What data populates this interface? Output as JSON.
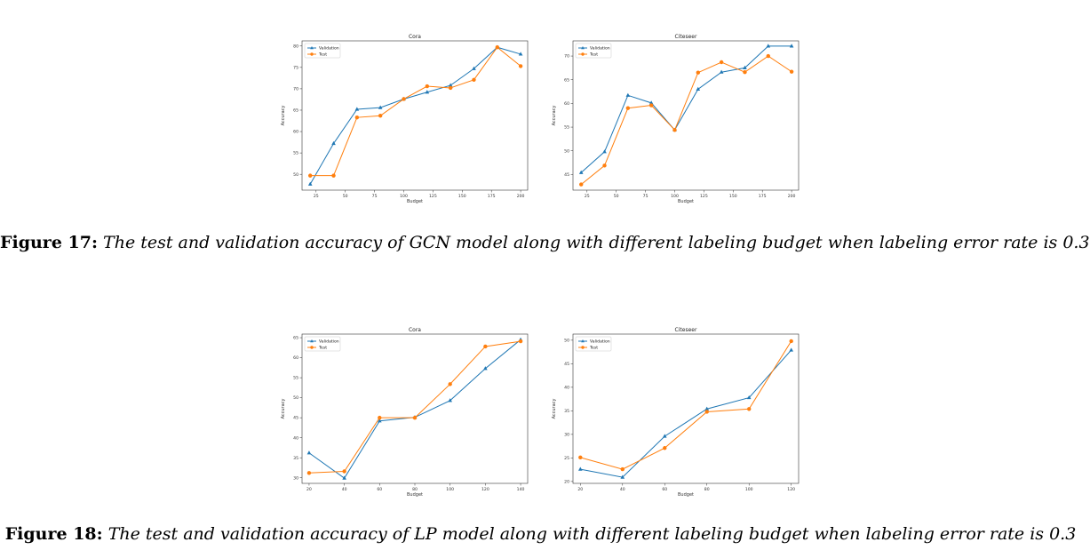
{
  "figures": [
    {
      "label": "Figure 17:",
      "text": "The test and validation accuracy of GCN model along with different labeling budget when labeling error rate is 0.3"
    },
    {
      "label": "Figure 18:",
      "text": "The test and validation accuracy of LP model along with different labeling budget when labeling error rate is 0.3"
    }
  ],
  "colors": {
    "validation": "#1f77b4",
    "test": "#ff7f0e"
  },
  "chart_data": [
    {
      "type": "line",
      "title": "Cora",
      "xlabel": "Budget",
      "ylabel": "Accuracy",
      "x": [
        20,
        40,
        60,
        80,
        100,
        120,
        140,
        160,
        180,
        200
      ],
      "xlim": [
        13,
        206
      ],
      "ylim": [
        46.3,
        81.2
      ],
      "xticks": [
        25,
        50,
        75,
        100,
        125,
        150,
        175,
        200
      ],
      "yticks": [
        50,
        55,
        60,
        65,
        70,
        75,
        80
      ],
      "legend": "top-left",
      "series": [
        {
          "name": "Validation",
          "marker": "triangle",
          "values": [
            47.7,
            57.2,
            65.2,
            65.6,
            67.6,
            69.2,
            70.8,
            74.7,
            79.7,
            78.1
          ]
        },
        {
          "name": "Test",
          "marker": "circle",
          "values": [
            49.7,
            49.7,
            63.3,
            63.7,
            67.6,
            70.6,
            70.2,
            72.1,
            79.7,
            75.3
          ]
        }
      ]
    },
    {
      "type": "line",
      "title": "Citeseer",
      "xlabel": "Budget",
      "ylabel": "Accuracy",
      "x": [
        20,
        40,
        60,
        80,
        100,
        120,
        140,
        160,
        180,
        200
      ],
      "xlim": [
        13,
        206
      ],
      "ylim": [
        41.7,
        73.2
      ],
      "xticks": [
        25,
        50,
        75,
        100,
        125,
        150,
        175,
        200
      ],
      "yticks": [
        45,
        50,
        55,
        60,
        65,
        70
      ],
      "legend": "top-left",
      "series": [
        {
          "name": "Validation",
          "marker": "triangle",
          "values": [
            45.4,
            49.8,
            61.7,
            60.1,
            54.4,
            63.0,
            66.6,
            67.5,
            72.1,
            72.1
          ]
        },
        {
          "name": "Test",
          "marker": "circle",
          "values": [
            42.9,
            46.9,
            59.0,
            59.6,
            54.4,
            66.5,
            68.7,
            66.6,
            70.0,
            66.7
          ]
        }
      ]
    },
    {
      "type": "line",
      "title": "Cora",
      "xlabel": "Budget",
      "ylabel": "Accuracy",
      "x": [
        20,
        40,
        60,
        80,
        100,
        120,
        140
      ],
      "xlim": [
        16,
        144
      ],
      "ylim": [
        28.6,
        65.9
      ],
      "xticks": [
        20,
        40,
        60,
        80,
        100,
        120,
        140
      ],
      "yticks": [
        30,
        35,
        40,
        45,
        50,
        55,
        60,
        65
      ],
      "legend": "top-left",
      "series": [
        {
          "name": "Validation",
          "marker": "triangle",
          "values": [
            36.2,
            29.9,
            44.2,
            45.1,
            49.3,
            57.3,
            64.5
          ]
        },
        {
          "name": "Test",
          "marker": "circle",
          "values": [
            31.2,
            31.6,
            45.0,
            45.0,
            53.4,
            62.8,
            64.1
          ]
        }
      ]
    },
    {
      "type": "line",
      "title": "Citeseer",
      "xlabel": "Budget",
      "ylabel": "Accuracy",
      "x": [
        20,
        40,
        60,
        80,
        100,
        120
      ],
      "xlim": [
        16.5,
        123.5
      ],
      "ylim": [
        19.6,
        51.3
      ],
      "xticks": [
        20,
        40,
        60,
        80,
        100,
        120
      ],
      "yticks": [
        20,
        25,
        30,
        35,
        40,
        45,
        50
      ],
      "legend": "top-left",
      "series": [
        {
          "name": "Validation",
          "marker": "triangle",
          "values": [
            22.6,
            20.9,
            29.6,
            35.4,
            37.8,
            47.9
          ]
        },
        {
          "name": "Test",
          "marker": "circle",
          "values": [
            25.1,
            22.6,
            27.1,
            34.8,
            35.4,
            49.8
          ]
        }
      ]
    }
  ]
}
